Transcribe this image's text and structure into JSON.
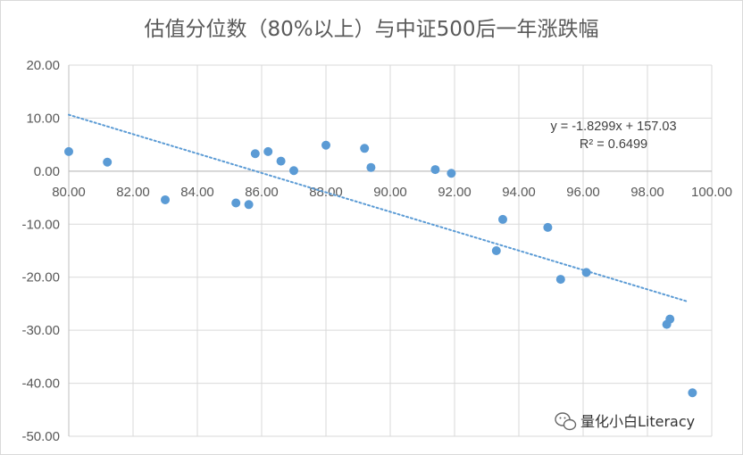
{
  "chart_data": {
    "type": "scatter",
    "title": "估值分位数（80%以上）与中证500后一年涨跌幅",
    "xlabel": "",
    "ylabel": "",
    "xlim": [
      80,
      100
    ],
    "ylim": [
      -50,
      20
    ],
    "x_ticks": [
      "80.00",
      "82.00",
      "84.00",
      "86.00",
      "88.00",
      "90.00",
      "92.00",
      "94.00",
      "96.00",
      "98.00",
      "100.00"
    ],
    "y_ticks": [
      "20.00",
      "10.00",
      "0.00",
      "-10.00",
      "-20.00",
      "-30.00",
      "-40.00",
      "-50.00"
    ],
    "grid": true,
    "point_color": "#5b9bd5",
    "trendline": {
      "slope": -1.8299,
      "intercept": 157.03,
      "x_range": [
        80,
        99.2
      ],
      "color": "#5b9bd5",
      "style": "dotted",
      "equation": "y = -1.8299x + 157.03",
      "r_squared": "R² = 0.6499"
    },
    "points": [
      {
        "x": 80.0,
        "y": 3.7
      },
      {
        "x": 81.2,
        "y": 1.7
      },
      {
        "x": 83.0,
        "y": -5.4
      },
      {
        "x": 85.2,
        "y": -6.0
      },
      {
        "x": 85.6,
        "y": -6.3
      },
      {
        "x": 85.8,
        "y": 3.3
      },
      {
        "x": 86.2,
        "y": 3.7
      },
      {
        "x": 86.6,
        "y": 1.9
      },
      {
        "x": 87.0,
        "y": 0.1
      },
      {
        "x": 88.0,
        "y": 4.9
      },
      {
        "x": 89.2,
        "y": 4.3
      },
      {
        "x": 89.4,
        "y": 0.7
      },
      {
        "x": 91.4,
        "y": 0.3
      },
      {
        "x": 91.9,
        "y": -0.4
      },
      {
        "x": 93.3,
        "y": -15.0
      },
      {
        "x": 93.5,
        "y": -9.1
      },
      {
        "x": 94.9,
        "y": -10.6
      },
      {
        "x": 95.3,
        "y": -20.4
      },
      {
        "x": 96.1,
        "y": -19.1
      },
      {
        "x": 98.6,
        "y": -28.9
      },
      {
        "x": 98.7,
        "y": -27.9
      },
      {
        "x": 99.4,
        "y": -41.8
      }
    ]
  },
  "watermark": {
    "text": "量化小白Literacy",
    "icon": "wechat-icon"
  }
}
